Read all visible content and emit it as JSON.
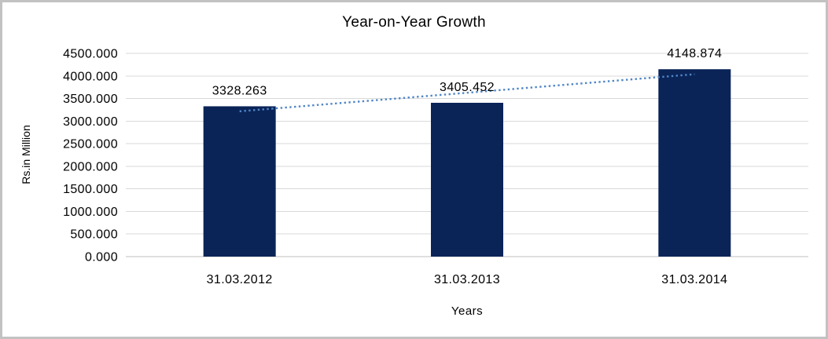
{
  "window": {
    "background_color": "#FFFFFF",
    "border_color": "#C2C2C2"
  },
  "chart_data": {
    "type": "bar",
    "title": "Year-on-Year Growth",
    "xlabel": "Years",
    "ylabel": "Rs.in Million",
    "categories": [
      "31.03.2012",
      "31.03.2013",
      "31.03.2014"
    ],
    "values": [
      3328.263,
      3405.452,
      4148.874
    ],
    "data_labels": [
      "3328.263",
      "3405.452",
      "4148.874"
    ],
    "ylim": [
      0,
      4500
    ],
    "ytick_step": 500,
    "ytick_labels": [
      "0.000",
      "500.000",
      "1000.000",
      "1500.000",
      "2000.000",
      "2500.000",
      "3000.000",
      "3500.000",
      "4000.000",
      "4500.000"
    ],
    "grid": true,
    "legend": "none",
    "bar_color": "#0A2458",
    "trendline": {
      "type": "linear",
      "style": "dotted",
      "color": "#4F86C6"
    },
    "gridline_color": "#D9D9D9",
    "axis_line_color": "#BFBFBF",
    "text_color": "#000000"
  }
}
